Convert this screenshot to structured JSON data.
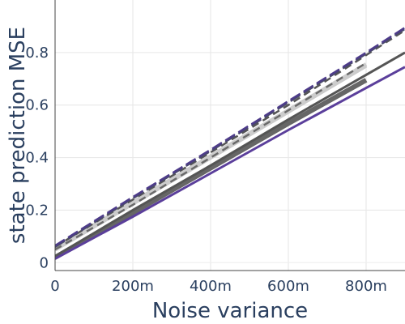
{
  "chart_data": {
    "type": "line",
    "xlabel": "Noise variance",
    "ylabel": "state prediction MSE",
    "xlim": [
      0,
      0.9
    ],
    "ylim": [
      -0.03,
      1.0
    ],
    "x_ticks": [
      {
        "value": 0,
        "label": "0"
      },
      {
        "value": 0.2,
        "label": "200m"
      },
      {
        "value": 0.4,
        "label": "400m"
      },
      {
        "value": 0.6,
        "label": "600m"
      },
      {
        "value": 0.8,
        "label": "800m"
      }
    ],
    "y_ticks": [
      {
        "value": 0,
        "label": "0"
      },
      {
        "value": 0.2,
        "label": "0.2"
      },
      {
        "value": 0.4,
        "label": "0.4"
      },
      {
        "value": 0.6,
        "label": "0.6"
      },
      {
        "value": 0.8,
        "label": "0.8"
      }
    ],
    "grid": true,
    "legend": "none",
    "series": [
      {
        "color": "#cccccc",
        "dash": "solid",
        "width": 5,
        "x": [
          0,
          0.2,
          0.4,
          0.6,
          0.8
        ],
        "y": [
          0.055,
          0.23,
          0.405,
          0.58,
          0.755
        ]
      },
      {
        "color": "#cccccc",
        "dash": "solid",
        "width": 5,
        "x": [
          0,
          0.2,
          0.4,
          0.6,
          0.8
        ],
        "y": [
          0.05,
          0.225,
          0.4,
          0.575,
          0.75
        ]
      },
      {
        "color": "#555555",
        "dash": "dash",
        "width": 2.5,
        "x": [
          0,
          0.2,
          0.4,
          0.6,
          0.8,
          0.9
        ],
        "y": [
          0.06,
          0.24,
          0.42,
          0.6,
          0.79,
          0.885
        ]
      },
      {
        "color": "#6a6a6a",
        "dash": "dash",
        "width": 2.5,
        "x": [
          0,
          0.2,
          0.4,
          0.6,
          0.8
        ],
        "y": [
          0.05,
          0.22,
          0.4,
          0.58,
          0.76
        ]
      },
      {
        "color": "#4a4a6a",
        "dash": "longdash",
        "width": 2.5,
        "x": [
          0,
          0.2,
          0.4,
          0.6,
          0.8,
          0.9
        ],
        "y": [
          0.06,
          0.245,
          0.425,
          0.61,
          0.795,
          0.89
        ]
      },
      {
        "color": "#4d3b8a",
        "dash": "longdash",
        "width": 2.5,
        "x": [
          0,
          0.2,
          0.4,
          0.6,
          0.8,
          0.9
        ],
        "y": [
          0.065,
          0.25,
          0.43,
          0.615,
          0.8,
          0.895
        ]
      },
      {
        "color": "#666666",
        "dash": "solid",
        "width": 6,
        "x": [
          0,
          0.2,
          0.4,
          0.6,
          0.8
        ],
        "y": [
          0.02,
          0.19,
          0.36,
          0.53,
          0.695
        ]
      },
      {
        "color": "#555555",
        "dash": "solid",
        "width": 3,
        "x": [
          0,
          0.2,
          0.4,
          0.6,
          0.8,
          0.9
        ],
        "y": [
          0.025,
          0.2,
          0.37,
          0.545,
          0.715,
          0.8
        ]
      },
      {
        "color": "#5b3f9b",
        "dash": "solid",
        "width": 3,
        "x": [
          0,
          0.2,
          0.4,
          0.6,
          0.8,
          0.9
        ],
        "y": [
          0.015,
          0.175,
          0.34,
          0.505,
          0.665,
          0.745
        ]
      }
    ]
  }
}
